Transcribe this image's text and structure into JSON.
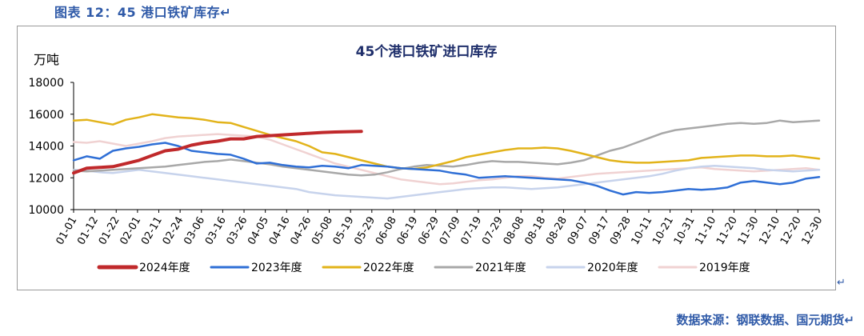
{
  "caption": "图表 12：45 港口铁矿库存↵",
  "source": "数据来源：钢联数据、国元期货↵",
  "return_mark": "↵",
  "chart_data": {
    "type": "line",
    "title": "45个港口铁矿进口库存",
    "ylabel": "万吨",
    "xlabel": "",
    "ylim": [
      10000,
      18000
    ],
    "yticks": [
      10000,
      12000,
      14000,
      16000,
      18000
    ],
    "grid": false,
    "legend": "bottom",
    "x_labels": [
      "01-01",
      "01-12",
      "01-22",
      "02-01",
      "02-11",
      "02-24",
      "03-06",
      "03-16",
      "03-26",
      "04-05",
      "04-16",
      "04-26",
      "05-08",
      "05-19",
      "05-29",
      "06-08",
      "06-19",
      "06-29",
      "07-09",
      "07-19",
      "07-29",
      "08-08",
      "08-18",
      "08-28",
      "09-07",
      "09-17",
      "09-28",
      "10-11",
      "10-21",
      "10-31",
      "11-10",
      "11-20",
      "11-30",
      "12-10",
      "12-20",
      "12-30"
    ],
    "series": [
      {
        "name": "2024年度",
        "color": "#c0292b",
        "width": 4,
        "values": [
          12300,
          12600,
          12650,
          12700,
          12900,
          13100,
          13400,
          13700,
          13800,
          14050,
          14200,
          14300,
          14450,
          14450,
          14600,
          14650,
          14700,
          14750,
          14800,
          14850,
          14880,
          14900,
          14920
        ]
      },
      {
        "name": "2023年度",
        "color": "#2f6fd6",
        "width": 2.5,
        "values": [
          13100,
          13350,
          13200,
          13700,
          13850,
          13950,
          14100,
          14200,
          14000,
          13700,
          13600,
          13500,
          13450,
          13200,
          12900,
          12950,
          12800,
          12700,
          12650,
          12750,
          12700,
          12600,
          12800,
          12750,
          12700,
          12600,
          12550,
          12500,
          12450,
          12300,
          12200,
          12000,
          12050,
          12100,
          12050,
          12000,
          11950,
          11900,
          11850,
          11700,
          11500,
          11200,
          10950,
          11100,
          11050,
          11100,
          11200,
          11300,
          11250,
          11300,
          11400,
          11700,
          11800,
          11700,
          11600,
          11700,
          11950,
          12050
        ]
      },
      {
        "name": "2022年度",
        "color": "#e2b31a",
        "width": 2.5,
        "values": [
          15600,
          15650,
          15500,
          15350,
          15650,
          15800,
          16000,
          15900,
          15800,
          15750,
          15650,
          15500,
          15450,
          15200,
          14950,
          14700,
          14500,
          14300,
          14000,
          13600,
          13500,
          13300,
          13100,
          12900,
          12700,
          12600,
          12550,
          12650,
          12850,
          13050,
          13300,
          13450,
          13600,
          13750,
          13850,
          13850,
          13900,
          13850,
          13700,
          13500,
          13300,
          13100,
          13000,
          12950,
          12950,
          13000,
          13050,
          13100,
          13250,
          13300,
          13350,
          13400,
          13400,
          13350,
          13350,
          13400,
          13300,
          13200
        ]
      },
      {
        "name": "2021年度",
        "color": "#a8a8a8",
        "width": 2.5,
        "values": [
          12450,
          12400,
          12450,
          12500,
          12550,
          12600,
          12650,
          12700,
          12800,
          12900,
          13000,
          13050,
          13150,
          13050,
          12950,
          12850,
          12700,
          12600,
          12500,
          12400,
          12300,
          12200,
          12150,
          12200,
          12350,
          12550,
          12700,
          12800,
          12750,
          12700,
          12800,
          12950,
          13050,
          13000,
          13000,
          12950,
          12900,
          12850,
          12950,
          13100,
          13400,
          13700,
          13900,
          14200,
          14500,
          14800,
          15000,
          15100,
          15200,
          15300,
          15400,
          15450,
          15400,
          15450,
          15600,
          15500,
          15550,
          15600
        ]
      },
      {
        "name": "2020年度",
        "color": "#c7d3ec",
        "width": 2.5,
        "values": [
          12500,
          12450,
          12350,
          12300,
          12400,
          12500,
          12400,
          12300,
          12200,
          12100,
          12000,
          11900,
          11800,
          11700,
          11600,
          11500,
          11400,
          11300,
          11100,
          11000,
          10900,
          10850,
          10800,
          10750,
          10700,
          10800,
          10900,
          11000,
          11100,
          11200,
          11300,
          11350,
          11400,
          11400,
          11350,
          11300,
          11350,
          11400,
          11500,
          11600,
          11700,
          11800,
          11900,
          12000,
          12100,
          12250,
          12450,
          12600,
          12700,
          12750,
          12700,
          12650,
          12600,
          12500,
          12450,
          12400,
          12450,
          12500
        ]
      },
      {
        "name": "2019年度",
        "color": "#f0d2d2",
        "width": 2.5,
        "values": [
          14250,
          14200,
          14300,
          14150,
          14000,
          14150,
          14300,
          14500,
          14600,
          14650,
          14700,
          14750,
          14700,
          14650,
          14600,
          14400,
          14100,
          13800,
          13500,
          13200,
          12900,
          12700,
          12500,
          12300,
          12100,
          11900,
          11800,
          11700,
          11600,
          11650,
          11750,
          11850,
          11900,
          12000,
          12100,
          12100,
          12000,
          11950,
          12050,
          12150,
          12250,
          12300,
          12350,
          12400,
          12450,
          12500,
          12550,
          12600,
          12650,
          12550,
          12500,
          12450,
          12400,
          12450,
          12500,
          12550,
          12600,
          12500
        ]
      }
    ]
  }
}
